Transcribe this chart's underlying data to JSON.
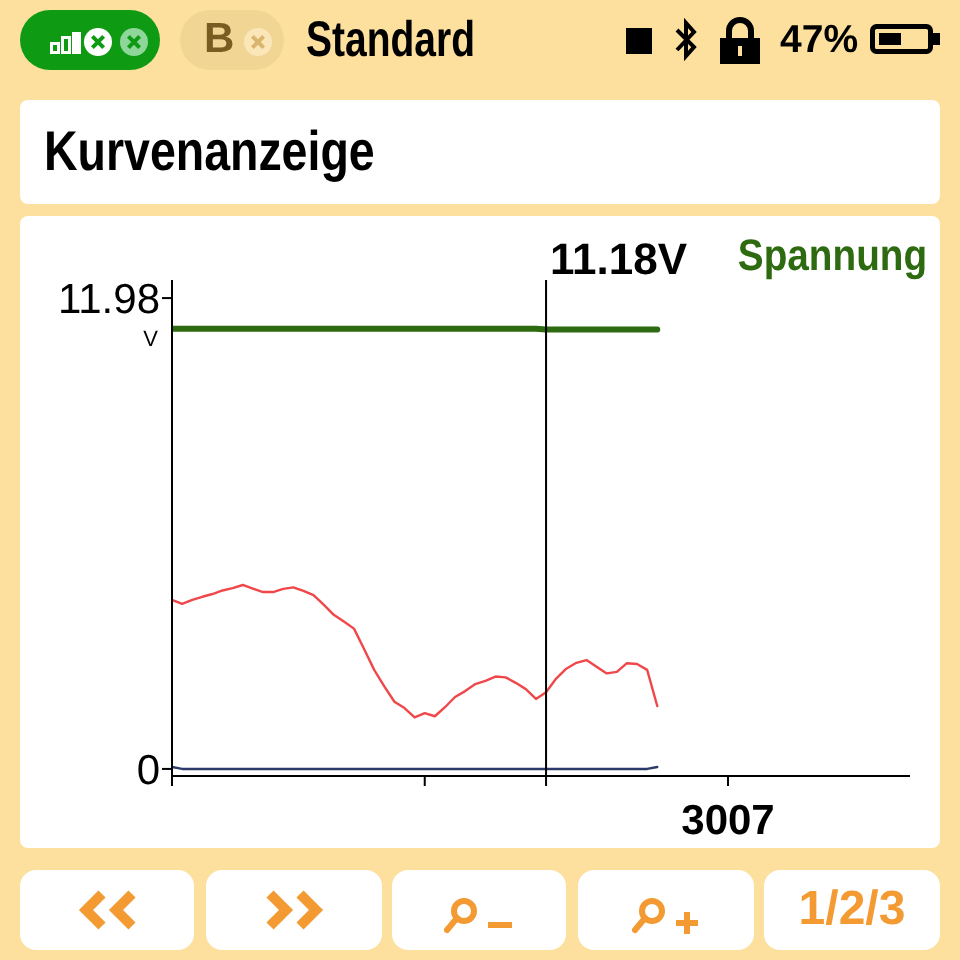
{
  "chart_data": {
    "type": "line",
    "title": "Kurvenanzeige",
    "ylabel": "V",
    "annotations": [
      "B",
      "Standard",
      "47%",
      "1/2/3",
      "11.18V"
    ],
    "categories": [
      null,
      null,
      null,
      null,
      null,
      null,
      null,
      null,
      null,
      null,
      null,
      null,
      null,
      null,
      null,
      null,
      null,
      null,
      null,
      null,
      null,
      null,
      null,
      null,
      null,
      null,
      null,
      null,
      null,
      null,
      null,
      null,
      null,
      null,
      null,
      null,
      null,
      null,
      null,
      null,
      null,
      null,
      null,
      null,
      null,
      null,
      null,
      null,
      null,
      null,
      null,
      null,
      null,
      null,
      null,
      "3007",
      null,
      null,
      null,
      null,
      null,
      null,
      null,
      null,
      null,
      null,
      null,
      null,
      null,
      null,
      null,
      null,
      null,
      null
    ],
    "ylim": [
      -0.18,
      12.44
    ],
    "yticks": [
      0,
      11.98
    ],
    "legend": "top right",
    "series": [
      {
        "name": "Spannung",
        "color": "#2d6a10",
        "values": [
          11.2,
          11.2,
          11.2,
          11.2,
          11.2,
          11.2,
          11.2,
          11.2,
          11.2,
          11.2,
          11.2,
          11.2,
          11.2,
          11.2,
          11.2,
          11.2,
          11.2,
          11.2,
          11.2,
          11.2,
          11.2,
          11.2,
          11.2,
          11.2,
          11.2,
          11.2,
          11.2,
          11.2,
          11.2,
          11.2,
          11.2,
          11.2,
          11.2,
          11.2,
          11.2,
          11.2,
          11.2,
          11.18,
          11.18,
          11.18,
          11.18,
          11.18,
          11.18,
          11.18,
          11.18,
          11.18,
          11.18,
          11.18,
          11.18,
          null,
          null,
          null,
          null,
          null,
          null,
          null,
          null,
          null,
          null,
          null,
          null,
          null,
          null,
          null,
          null,
          null,
          null,
          null,
          null,
          null,
          null,
          null,
          null,
          null
        ]
      },
      {
        "color": "#f0484a",
        "values": [
          4.3,
          4.2,
          4.3,
          4.38,
          4.45,
          4.54,
          4.6,
          4.68,
          4.59,
          4.5,
          4.5,
          4.58,
          4.62,
          4.53,
          4.42,
          4.18,
          3.92,
          3.75,
          3.57,
          3.05,
          2.52,
          2.1,
          1.71,
          1.55,
          1.31,
          1.42,
          1.34,
          1.57,
          1.83,
          1.98,
          2.16,
          2.24,
          2.35,
          2.33,
          2.19,
          2.03,
          1.78,
          1.95,
          2.3,
          2.55,
          2.7,
          2.77,
          2.6,
          2.43,
          2.47,
          2.69,
          2.67,
          2.52,
          1.6,
          null,
          null,
          null,
          null,
          null,
          null,
          null,
          null,
          null,
          null,
          null,
          null,
          null,
          null,
          null,
          null,
          null,
          null,
          null,
          null,
          null,
          null,
          null,
          null,
          null
        ]
      },
      {
        "color": "#2c3a6a",
        "values": [
          0.05,
          0,
          0,
          0,
          0,
          0,
          0,
          0,
          0,
          0,
          0,
          0,
          0,
          0,
          0,
          0,
          0,
          0,
          0,
          0,
          0,
          0,
          0,
          0,
          0,
          0,
          0,
          0,
          0,
          0,
          0,
          0,
          0,
          0,
          0,
          0,
          0,
          0,
          0,
          0,
          0,
          0,
          0,
          0,
          0,
          0,
          0,
          0,
          0.05,
          null,
          null,
          null,
          null,
          null,
          null,
          null,
          null,
          null,
          null,
          null,
          null,
          null,
          null,
          null,
          null,
          null,
          null,
          null,
          null,
          null,
          null,
          null,
          null,
          null
        ]
      }
    ]
  }
}
